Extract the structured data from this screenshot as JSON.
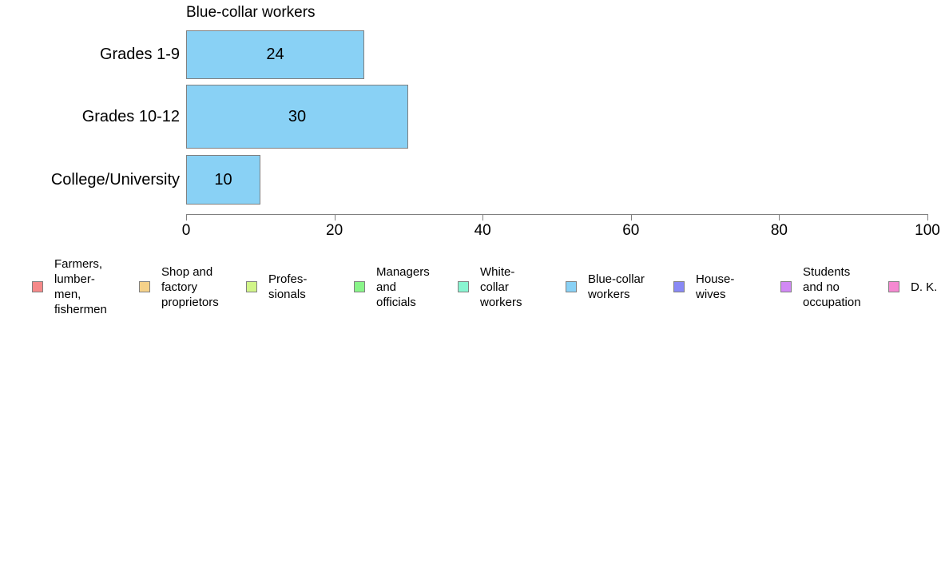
{
  "chart_data": {
    "type": "bar",
    "orientation": "horizontal",
    "title": "Blue-collar workers",
    "categories": [
      "Grades 1-9",
      "Grades 10-12",
      "College/University"
    ],
    "values": [
      24,
      30,
      10
    ],
    "xlabel": "",
    "ylabel": "",
    "xlim": [
      0,
      100
    ],
    "xticks": [
      0,
      20,
      40,
      60,
      80,
      100
    ],
    "grid": false,
    "bar_color": "#89D1F5",
    "bar_border_color": "#808080",
    "axis_color": "#808080",
    "legend_position": "bottom",
    "legend": [
      {
        "label": "Farmers,\nlumber-\nmen,\nfishermen",
        "color": "#F58989"
      },
      {
        "label": "Shop and\nfactory\nproprietors",
        "color": "#F5D189"
      },
      {
        "label": "Profes-\nsionals",
        "color": "#D1F589"
      },
      {
        "label": "Managers\nand\nofficials",
        "color": "#89F589"
      },
      {
        "label": "White-\ncollar\nworkers",
        "color": "#89F5D1"
      },
      {
        "label": "Blue-collar\nworkers",
        "color": "#89D1F5"
      },
      {
        "label": "House-\nwives",
        "color": "#8989F5"
      },
      {
        "label": "Students\nand no\noccupation",
        "color": "#D189F5"
      },
      {
        "label": "D. K.",
        "color": "#F589D1"
      }
    ]
  }
}
